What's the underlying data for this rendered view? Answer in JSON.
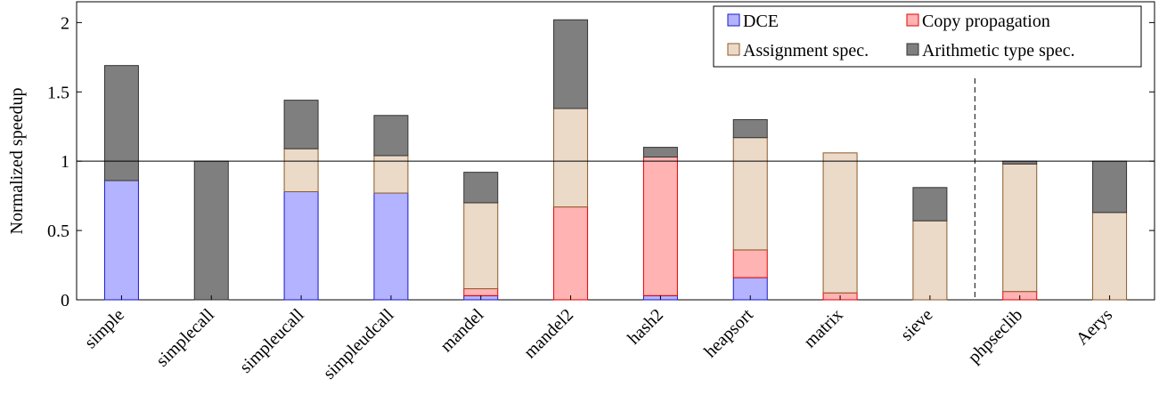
{
  "chart_data": {
    "type": "bar",
    "stacked": true,
    "ylabel": "Normalized speedup",
    "xlabel": "",
    "ylim": [
      0,
      2.15
    ],
    "yticks": [
      "0",
      "0.5",
      "1",
      "1.5",
      "2"
    ],
    "reference_line": 1,
    "separator_after_category": "sieve",
    "legend_position": "top-right",
    "categories": [
      "simple",
      "simplecall",
      "simpleucall",
      "simpleudcall",
      "mandel",
      "mandel2",
      "hash2",
      "heapsort",
      "matrix",
      "sieve",
      "phpseclib",
      "Aerys"
    ],
    "series": [
      {
        "name": "DCE",
        "fill": "#b3b3ff",
        "stroke": "#1a1acc",
        "values": [
          0.86,
          0,
          0.78,
          0.77,
          0.03,
          0,
          0.03,
          0.16,
          0,
          0,
          0,
          0
        ]
      },
      {
        "name": "Copy propagation",
        "fill": "#ffb3b3",
        "stroke": "#e60000",
        "values": [
          0,
          0,
          0,
          0,
          0.05,
          0.67,
          1.0,
          0.2,
          0.05,
          0,
          0.06,
          0
        ]
      },
      {
        "name": "Assignment spec.",
        "fill": "#ecdac8",
        "stroke": "#8b5a2b",
        "values": [
          0,
          0,
          0.31,
          0.27,
          0.62,
          0.71,
          0,
          0.81,
          1.01,
          0.57,
          0.92,
          0.63
        ]
      },
      {
        "name": "Arithmetic type spec.",
        "fill": "#7f7f7f",
        "stroke": "#333333",
        "values": [
          0.83,
          1.0,
          0.35,
          0.29,
          0.22,
          0.64,
          0.07,
          0.13,
          0,
          0.24,
          0.02,
          0.37
        ]
      }
    ]
  }
}
